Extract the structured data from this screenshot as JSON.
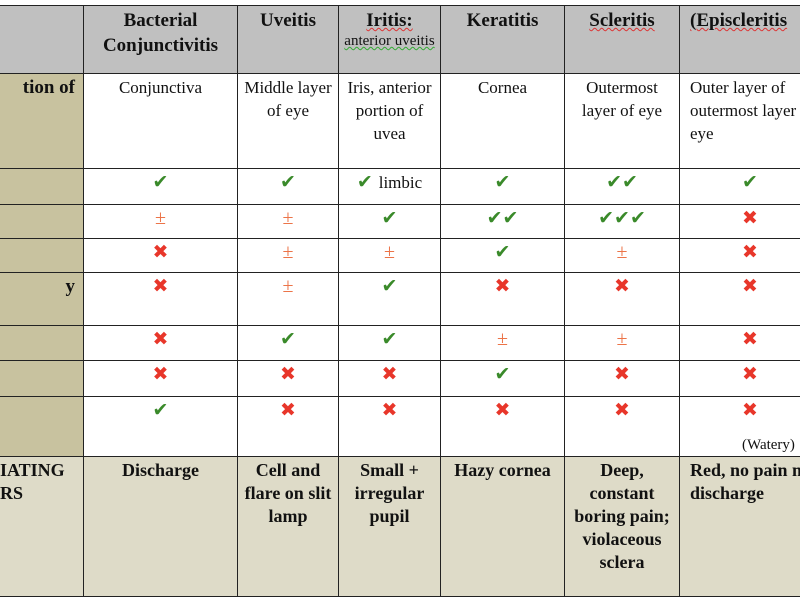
{
  "headers": [
    {
      "title": "",
      "sub": ""
    },
    {
      "title": "Bacterial Conjunctivitis",
      "sub": ""
    },
    {
      "title": "Uveitis",
      "sub": ""
    },
    {
      "title": "Iritis:",
      "sub": "anterior uveitis"
    },
    {
      "title": "Keratitis",
      "sub": ""
    },
    {
      "title": "Scleritis",
      "sub": ""
    },
    {
      "title": "(Episcleritis",
      "sub": ""
    }
  ],
  "location_row": {
    "label": "tion of",
    "cells": [
      "Conjunctiva",
      "Middle layer of eye",
      "Iris, anterior portion of uvea",
      "Cornea",
      "Outermost layer of eye",
      "Outer layer of outermost layer of eye"
    ]
  },
  "symbols": {
    "yes": "✔",
    "yes2": "✔✔",
    "yes3": "✔✔✔",
    "no": "✖",
    "pm": "±"
  },
  "colors": {
    "yes": "#3a8a2a",
    "no": "#e8362a",
    "pm": "#ec7448",
    "header_bg": "#c0c0c0",
    "side_bg": "#c8c29f",
    "footer_bg": "#dedbc8"
  },
  "rows": [
    {
      "label": "",
      "cells": [
        {
          "s": "✔",
          "t": "yes"
        },
        {
          "s": "✔",
          "t": "yes"
        },
        {
          "s": "✔",
          "t": "yes",
          "note": "limbic"
        },
        {
          "s": "✔",
          "t": "yes"
        },
        {
          "s": "✔✔",
          "t": "yes"
        },
        {
          "s": "✔",
          "t": "yes"
        }
      ]
    },
    {
      "label": "",
      "cells": [
        {
          "s": "±",
          "t": "pm"
        },
        {
          "s": "±",
          "t": "pm"
        },
        {
          "s": "✔",
          "t": "yes"
        },
        {
          "s": "✔✔",
          "t": "yes"
        },
        {
          "s": "✔✔✔",
          "t": "yes"
        },
        {
          "s": "✖",
          "t": "no"
        }
      ]
    },
    {
      "label": "",
      "cells": [
        {
          "s": "✖",
          "t": "no"
        },
        {
          "s": "±",
          "t": "pm"
        },
        {
          "s": "±",
          "t": "pm"
        },
        {
          "s": "✔",
          "t": "yes"
        },
        {
          "s": "±",
          "t": "pm"
        },
        {
          "s": "✖",
          "t": "no"
        }
      ]
    },
    {
      "label": "y",
      "cells": [
        {
          "s": "✖",
          "t": "no"
        },
        {
          "s": "±",
          "t": "pm"
        },
        {
          "s": "✔",
          "t": "yes"
        },
        {
          "s": "✖",
          "t": "no"
        },
        {
          "s": "✖",
          "t": "no"
        },
        {
          "s": "✖",
          "t": "no"
        }
      ]
    },
    {
      "label": "",
      "cells": [
        {
          "s": "✖",
          "t": "no"
        },
        {
          "s": "✔",
          "t": "yes"
        },
        {
          "s": "✔",
          "t": "yes"
        },
        {
          "s": "±",
          "t": "pm"
        },
        {
          "s": "±",
          "t": "pm"
        },
        {
          "s": "✖",
          "t": "no"
        }
      ]
    },
    {
      "label": "",
      "cells": [
        {
          "s": "✖",
          "t": "no"
        },
        {
          "s": "✖",
          "t": "no"
        },
        {
          "s": "✖",
          "t": "no"
        },
        {
          "s": "✔",
          "t": "yes"
        },
        {
          "s": "✖",
          "t": "no"
        },
        {
          "s": "✖",
          "t": "no"
        }
      ]
    },
    {
      "label": "",
      "cells": [
        {
          "s": "✔",
          "t": "yes"
        },
        {
          "s": "✖",
          "t": "no"
        },
        {
          "s": "✖",
          "t": "no"
        },
        {
          "s": "✖",
          "t": "no"
        },
        {
          "s": "✖",
          "t": "no"
        },
        {
          "s": "✖",
          "t": "no",
          "below": "(Watery)"
        }
      ]
    }
  ],
  "distinguishing_row": {
    "label": "IATING RS",
    "cells": [
      "Discharge",
      "Cell and flare on slit lamp",
      "Small + irregular pupil",
      "Hazy cornea",
      "Deep, constant boring pain; violaceous sclera",
      "Red, no pain nor discharge"
    ]
  }
}
